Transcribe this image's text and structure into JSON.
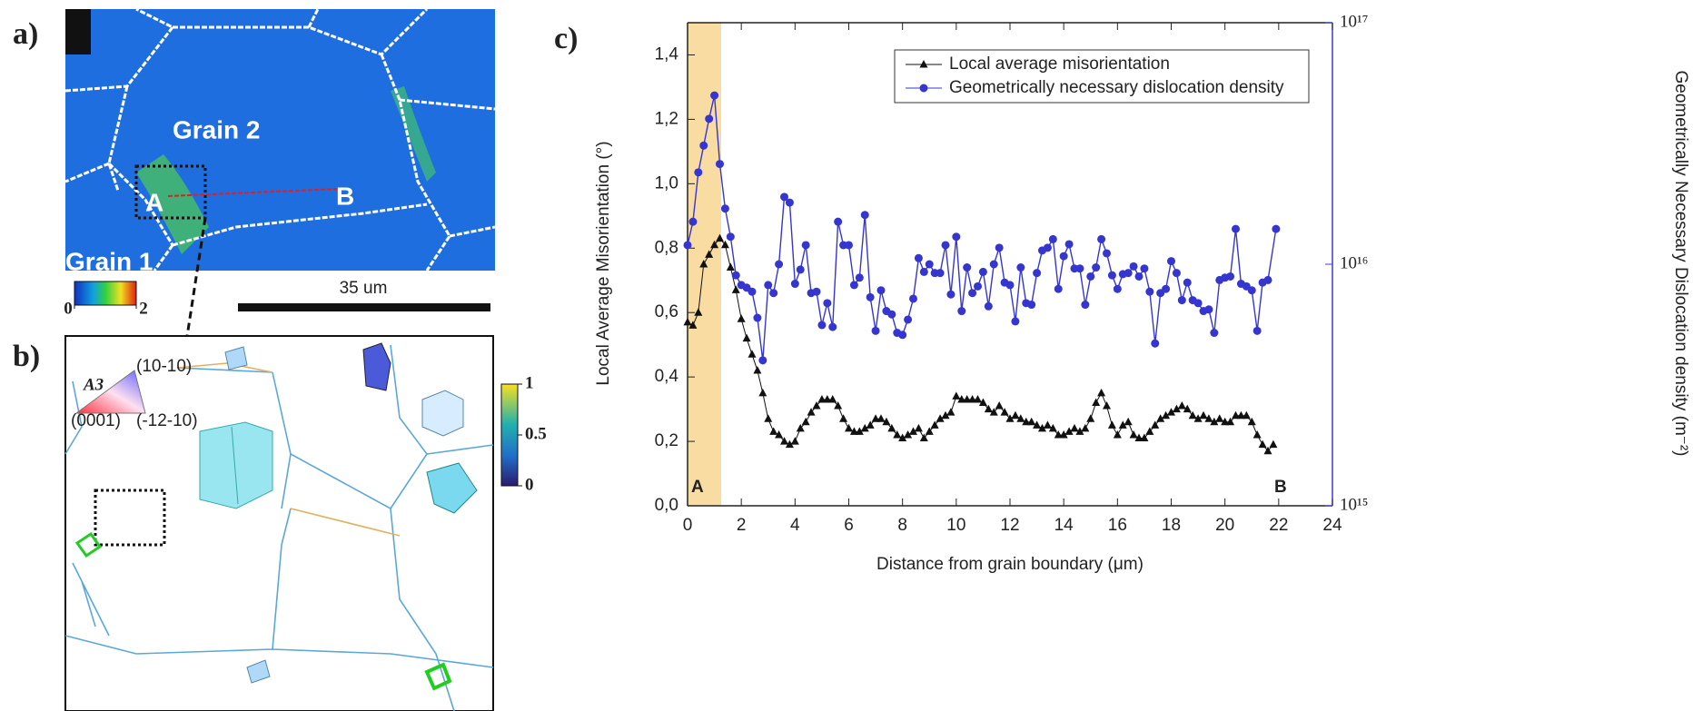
{
  "panel_labels": [
    "a)",
    "b)",
    "c)"
  ],
  "map_a": {
    "grain_labels": [
      "Grain 2",
      "Grain 1"
    ],
    "point_labels": [
      "A",
      "B"
    ],
    "scale_bar": "35 um",
    "colorbar": {
      "lim": [
        0,
        2
      ],
      "ticks": [
        0,
        2
      ]
    }
  },
  "map_b": {
    "ipf_title": "A3",
    "ipf_labels": [
      "(10-10)",
      "(0001)",
      "(-12-10)"
    ],
    "colorbar": {
      "lim": [
        0,
        1
      ],
      "ticks": [
        0,
        0.5,
        1
      ]
    }
  },
  "chart_data": {
    "type": "line",
    "xlabel": "Distance from grain boundary (μm)",
    "ylabel": "Local Average Misorientation (°)",
    "y2label": "Geometrically Necessary Dislocation density (m⁻²)",
    "xlim": [
      0,
      24
    ],
    "xticks": [
      0,
      2,
      4,
      6,
      8,
      10,
      12,
      14,
      16,
      18,
      20,
      22,
      24
    ],
    "ylim": [
      0,
      1.5
    ],
    "yticks": [
      {
        "value": 0,
        "label": "0,0"
      },
      {
        "value": 0.2,
        "label": "0,2"
      },
      {
        "value": 0.4,
        "label": "0,4"
      },
      {
        "value": 0.6,
        "label": "0,6"
      },
      {
        "value": 0.8,
        "label": "0,8"
      },
      {
        "value": 1.0,
        "label": "1,0"
      },
      {
        "value": 1.2,
        "label": "1,2"
      },
      {
        "value": 1.4,
        "label": "1,4"
      }
    ],
    "y2lim": [
      1000000000000000.0,
      1e+17
    ],
    "y2scale": "log",
    "y2ticks": [
      {
        "value": 1000000000000000.0,
        "label": "10¹⁵"
      },
      {
        "value": 1e+16,
        "label": "10¹⁶"
      },
      {
        "value": 1e+17,
        "label": "10¹⁷"
      }
    ],
    "y2color": "#3b3bd6",
    "legend": "top-right",
    "highlight": {
      "x": [
        0,
        1.25
      ],
      "color": "#f9dca2"
    },
    "annotations": [
      "A",
      "B"
    ],
    "series": [
      {
        "name": "Local average misorientation",
        "color": "#111111",
        "marker": "triangle",
        "x": [
          0,
          0.2,
          0.4,
          0.6,
          0.8,
          1,
          1.2,
          1.4,
          1.6,
          1.8,
          2,
          2.2,
          2.4,
          2.6,
          2.8,
          3,
          3.2,
          3.4,
          3.6,
          3.8,
          4,
          4.2,
          4.4,
          4.6,
          4.8,
          5,
          5.2,
          5.4,
          5.6,
          5.8,
          6,
          6.2,
          6.4,
          6.6,
          6.8,
          7,
          7.2,
          7.4,
          7.6,
          7.8,
          8,
          8.2,
          8.4,
          8.6,
          8.8,
          9,
          9.2,
          9.4,
          9.6,
          9.8,
          10,
          10.2,
          10.4,
          10.6,
          10.8,
          11,
          11.2,
          11.4,
          11.6,
          11.8,
          12,
          12.2,
          12.4,
          12.6,
          12.8,
          13,
          13.2,
          13.4,
          13.6,
          13.8,
          14,
          14.2,
          14.4,
          14.6,
          14.8,
          15,
          15.2,
          15.4,
          15.6,
          15.8,
          16,
          16.2,
          16.4,
          16.6,
          16.8,
          17,
          17.2,
          17.4,
          17.6,
          17.8,
          18,
          18.2,
          18.4,
          18.6,
          18.8,
          19,
          19.2,
          19.4,
          19.6,
          19.8,
          20,
          20.2,
          20.4,
          20.6,
          20.8,
          21,
          21.2,
          21.4,
          21.6,
          21.8
        ],
        "values": [
          0.57,
          0.56,
          0.6,
          0.75,
          0.78,
          0.81,
          0.83,
          0.81,
          0.74,
          0.67,
          0.58,
          0.52,
          0.47,
          0.42,
          0.35,
          0.27,
          0.23,
          0.22,
          0.2,
          0.19,
          0.2,
          0.24,
          0.26,
          0.29,
          0.31,
          0.33,
          0.33,
          0.33,
          0.31,
          0.27,
          0.24,
          0.23,
          0.23,
          0.24,
          0.25,
          0.27,
          0.27,
          0.26,
          0.24,
          0.22,
          0.21,
          0.22,
          0.23,
          0.24,
          0.21,
          0.23,
          0.25,
          0.27,
          0.28,
          0.29,
          0.34,
          0.33,
          0.33,
          0.33,
          0.33,
          0.32,
          0.3,
          0.29,
          0.31,
          0.29,
          0.27,
          0.28,
          0.27,
          0.26,
          0.26,
          0.25,
          0.24,
          0.25,
          0.24,
          0.22,
          0.22,
          0.23,
          0.24,
          0.23,
          0.24,
          0.27,
          0.32,
          0.35,
          0.31,
          0.25,
          0.22,
          0.25,
          0.26,
          0.22,
          0.21,
          0.21,
          0.23,
          0.25,
          0.27,
          0.28,
          0.29,
          0.3,
          0.31,
          0.3,
          0.28,
          0.27,
          0.28,
          0.27,
          0.26,
          0.27,
          0.26,
          0.26,
          0.28,
          0.28,
          0.28,
          0.26,
          0.22,
          0.19,
          0.17,
          0.19
        ]
      },
      {
        "name": "Geometrically necessary dislocation density",
        "color": "#3535d0",
        "marker": "circle",
        "axis": "y2",
        "x": [
          0,
          0.2,
          0.4,
          0.6,
          0.8,
          1,
          1.2,
          1.4,
          1.6,
          1.8,
          2,
          2.2,
          2.4,
          2.6,
          2.8,
          3,
          3.2,
          3.4,
          3.6,
          3.8,
          4,
          4.2,
          4.4,
          4.6,
          4.8,
          5,
          5.2,
          5.4,
          5.6,
          5.8,
          6,
          6.2,
          6.4,
          6.6,
          6.8,
          7,
          7.2,
          7.4,
          7.6,
          7.8,
          8,
          8.2,
          8.4,
          8.6,
          8.8,
          9,
          9.2,
          9.4,
          9.6,
          9.8,
          10,
          10.2,
          10.4,
          10.6,
          10.8,
          11,
          11.2,
          11.4,
          11.6,
          11.8,
          12,
          12.2,
          12.4,
          12.6,
          12.8,
          13,
          13.2,
          13.4,
          13.6,
          13.8,
          14,
          14.2,
          14.4,
          14.6,
          14.8,
          15,
          15.2,
          15.4,
          15.6,
          15.8,
          16,
          16.2,
          16.4,
          16.6,
          16.8,
          17,
          17.2,
          17.4,
          17.6,
          17.8,
          18,
          18.2,
          18.4,
          18.6,
          18.8,
          19,
          19.2,
          19.4,
          19.6,
          19.8,
          20,
          20.2,
          20.4,
          20.6,
          20.8,
          21,
          21.2,
          21.4,
          21.6,
          21.9
        ],
        "values": [
          1.2e+16,
          1.5e+16,
          2.4e+16,
          3.1e+16,
          4e+16,
          5e+16,
          2.6e+16,
          1.7e+16,
          1.3e+16,
          9000000000000000.0,
          8200000000000000.0,
          8000000000000000.0,
          7700000000000000.0,
          6000000000000000.0,
          4000000000000000.0,
          8200000000000000.0,
          7600000000000000.0,
          1e+16,
          1.9e+16,
          1.8e+16,
          8300000000000000.0,
          9500000000000000.0,
          1.2e+16,
          7600000000000000.0,
          7700000000000000.0,
          5600000000000000.0,
          6900000000000000.0,
          5500000000000000.0,
          1.5e+16,
          1.2e+16,
          1.2e+16,
          8200000000000000.0,
          8800000000000000.0,
          1.6e+16,
          7300000000000000.0,
          5300000000000000.0,
          7800000000000000.0,
          6400000000000000.0,
          6200000000000000.0,
          5200000000000000.0,
          5100000000000000.0,
          5900000000000000.0,
          7200000000000000.0,
          1.06e+16,
          9300000000000000.0,
          1e+16,
          9200000000000000.0,
          9200000000000000.0,
          1.2e+16,
          7500000000000000.0,
          1.3e+16,
          6400000000000000.0,
          9700000000000000.0,
          7600000000000000.0,
          8100000000000000.0,
          9300000000000000.0,
          6700000000000000.0,
          1e+16,
          1.17e+16,
          8400000000000000.0,
          8200000000000000.0,
          5800000000000000.0,
          9700000000000000.0,
          6900000000000000.0,
          6800000000000000.0,
          9200000000000000.0,
          1.14e+16,
          1.17e+16,
          1.27e+16,
          7900000000000000.0,
          1.08e+16,
          1.21e+16,
          9600000000000000.0,
          9600000000000000.0,
          6800000000000000.0,
          8900000000000000.0,
          9700000000000000.0,
          1.27e+16,
          1.11e+16,
          9000000000000000.0,
          7900000000000000.0,
          9100000000000000.0,
          9200000000000000.0,
          9800000000000000.0,
          8900000000000000.0,
          9600000000000000.0,
          7700000000000000.0,
          4700000000000000.0,
          7600000000000000.0,
          7900000000000000.0,
          1.03e+16,
          9200000000000000.0,
          7100000000000000.0,
          8400000000000000.0,
          7100000000000000.0,
          6900000000000000.0,
          6400000000000000.0,
          6500000000000000.0,
          5200000000000000.0,
          8600000000000000.0,
          8800000000000000.0,
          8900000000000000.0,
          1.4e+16,
          8300000000000000.0,
          8100000000000000.0,
          7800000000000000.0,
          5300000000000000.0,
          8400000000000000.0,
          8600000000000000.0,
          1.4e+16
        ]
      }
    ]
  }
}
